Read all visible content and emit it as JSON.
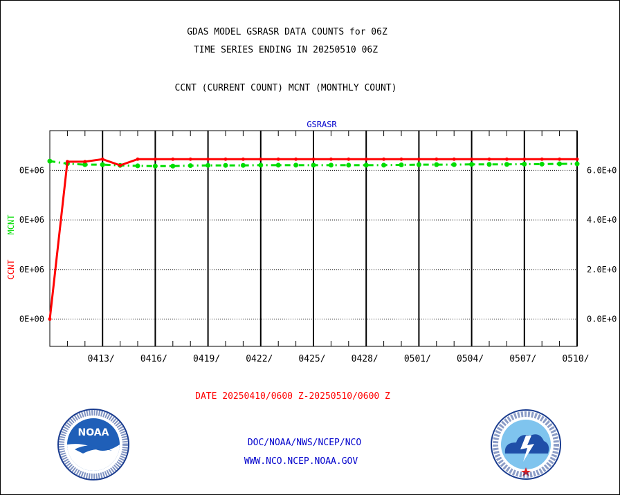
{
  "header": {
    "title_line1": "GDAS MODEL GSRASR DATA COUNTS for 06Z",
    "title_line2": "TIME SERIES ENDING IN 20250510 06Z",
    "subtitle": "CCNT (CURRENT COUNT) MCNT (MONTHLY COUNT)"
  },
  "footer": {
    "date_range": "DATE 20250410/0600 Z-20250510/0600 Z",
    "org_line": "DOC/NOAA/NWS/NCEP/NCO",
    "web_line": "WWW.NCO.NCEP.NOAA.GOV"
  },
  "logos": {
    "left_text": "NOAA",
    "left_ring": "NATIONAL OCEANIC AND ATMOSPHERIC ADMINISTRATION · U.S. DEPARTMENT OF COMMERCE",
    "right_ring": "NATIONAL WEATHER SERVICE"
  },
  "colors": {
    "ccnt": "#ff0000",
    "mcnt": "#00dd00",
    "panel_title": "#0000cc",
    "footer_text": "#0000cc",
    "date_text": "#ff0000"
  },
  "chart_data": {
    "type": "line",
    "panel_title": "GSRASR",
    "ylabel_left_ccnt": "CCNT",
    "ylabel_left_mcnt": "MCNT",
    "left_tick_labels": [
      "0E+00",
      "0E+06",
      "0E+06",
      "0E+06"
    ],
    "right_tick_labels": [
      "0.0E+0",
      "2.0E+0",
      "4.0E+0",
      "6.0E+0"
    ],
    "y_ticks": [
      0,
      2000000,
      4000000,
      6000000
    ],
    "ylim": [
      -1100000,
      7600000
    ],
    "xlim": [
      0,
      30
    ],
    "x_tick_labels": [
      "0413/",
      "0416/",
      "0419/",
      "0422/",
      "0425/",
      "0428/",
      "0501/",
      "0504/",
      "0507/",
      "0510/"
    ],
    "x_tick_positions": [
      3,
      6,
      9,
      12,
      15,
      18,
      21,
      24,
      27,
      30
    ],
    "grid": true,
    "x": [
      0,
      1,
      2,
      3,
      4,
      5,
      6,
      7,
      8,
      9,
      10,
      11,
      12,
      13,
      14,
      15,
      16,
      17,
      18,
      19,
      20,
      21,
      22,
      23,
      24,
      25,
      26,
      27,
      28,
      29,
      30
    ],
    "series": [
      {
        "name": "CCNT",
        "values": [
          0,
          6350000,
          6350000,
          6450000,
          6200000,
          6450000,
          6450000,
          6450000,
          6450000,
          6450000,
          6450000,
          6450000,
          6450000,
          6450000,
          6450000,
          6450000,
          6450000,
          6450000,
          6450000,
          6450000,
          6450000,
          6450000,
          6450000,
          6450000,
          6450000,
          6450000,
          6450000,
          6450000,
          6450000,
          6450000,
          6450000
        ]
      },
      {
        "name": "MCNT",
        "values": [
          6370000,
          6270000,
          6230000,
          6230000,
          6200000,
          6180000,
          6170000,
          6170000,
          6190000,
          6200000,
          6200000,
          6200000,
          6210000,
          6210000,
          6210000,
          6210000,
          6210000,
          6210000,
          6210000,
          6210000,
          6220000,
          6230000,
          6230000,
          6230000,
          6240000,
          6240000,
          6240000,
          6250000,
          6250000,
          6260000,
          6260000
        ]
      }
    ]
  }
}
